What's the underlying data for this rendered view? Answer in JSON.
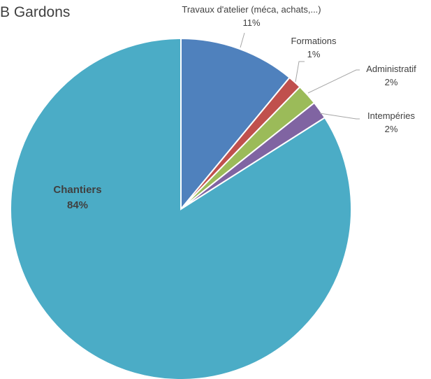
{
  "chart_data": {
    "type": "pie",
    "title": "B Gardons",
    "slices": [
      {
        "name": "Travaux d'atelier (méca, achats,...)",
        "percent_label": "11%",
        "value": 11,
        "color": "#4f81bd"
      },
      {
        "name": "Formations",
        "percent_label": "1%",
        "value": 1.3,
        "color": "#c0504d"
      },
      {
        "name": "Administratif",
        "percent_label": "2%",
        "value": 2.0,
        "color": "#9bbb59"
      },
      {
        "name": "Intempéries",
        "percent_label": "2%",
        "value": 1.7,
        "color": "#8064a2"
      },
      {
        "name": "Chantiers",
        "percent_label": "84%",
        "value": 84,
        "color": "#4bacc6"
      }
    ],
    "start_angle_deg": 0,
    "direction": "clockwise",
    "legend": "none"
  }
}
